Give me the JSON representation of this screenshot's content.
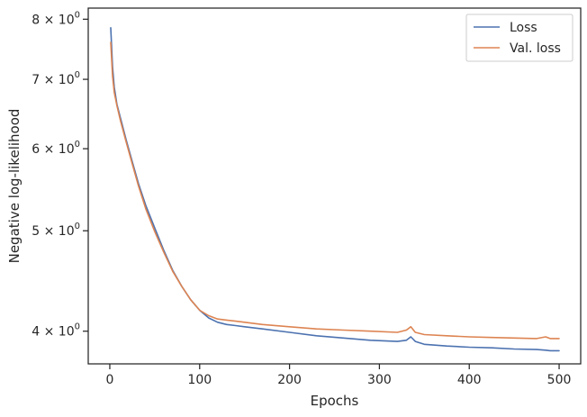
{
  "chart_data": {
    "type": "line",
    "title": "",
    "xlabel": "Epochs",
    "ylabel": "Negative log-likelihood",
    "xlim": [
      -24,
      524
    ],
    "ylim": [
      3.72,
      8.2
    ],
    "yscale": "log",
    "x_ticks": [
      {
        "value": 0,
        "label": "0"
      },
      {
        "value": 100,
        "label": "100"
      },
      {
        "value": 200,
        "label": "200"
      },
      {
        "value": 300,
        "label": "300"
      },
      {
        "value": 400,
        "label": "400"
      },
      {
        "value": 500,
        "label": "500"
      }
    ],
    "y_ticks": [
      {
        "value": 4,
        "base": "4",
        "mult": "×",
        "pow": "10",
        "exp": "0"
      },
      {
        "value": 5,
        "base": "5",
        "mult": "×",
        "pow": "10",
        "exp": "0"
      },
      {
        "value": 6,
        "base": "6",
        "mult": "×",
        "pow": "10",
        "exp": "0"
      },
      {
        "value": 7,
        "base": "7",
        "mult": "×",
        "pow": "10",
        "exp": "0"
      },
      {
        "value": 8,
        "base": "8",
        "mult": "×",
        "pow": "10",
        "exp": "0"
      }
    ],
    "grid": false,
    "legend_position": "top-right",
    "series": [
      {
        "name": "Loss",
        "color": "#4c72b0",
        "points": [
          [
            1,
            7.85
          ],
          [
            3,
            7.2
          ],
          [
            5,
            6.88
          ],
          [
            8,
            6.62
          ],
          [
            12,
            6.42
          ],
          [
            18,
            6.13
          ],
          [
            25,
            5.83
          ],
          [
            32,
            5.55
          ],
          [
            40,
            5.29
          ],
          [
            50,
            5.03
          ],
          [
            60,
            4.79
          ],
          [
            70,
            4.58
          ],
          [
            80,
            4.42
          ],
          [
            90,
            4.29
          ],
          [
            100,
            4.19
          ],
          [
            110,
            4.12
          ],
          [
            120,
            4.08
          ],
          [
            130,
            4.06
          ],
          [
            140,
            4.05
          ],
          [
            150,
            4.04
          ],
          [
            170,
            4.02
          ],
          [
            200,
            3.99
          ],
          [
            230,
            3.96
          ],
          [
            260,
            3.94
          ],
          [
            290,
            3.92
          ],
          [
            320,
            3.91
          ],
          [
            330,
            3.92
          ],
          [
            335,
            3.95
          ],
          [
            340,
            3.91
          ],
          [
            350,
            3.885
          ],
          [
            375,
            3.87
          ],
          [
            400,
            3.86
          ],
          [
            425,
            3.855
          ],
          [
            450,
            3.845
          ],
          [
            475,
            3.84
          ],
          [
            485,
            3.835
          ],
          [
            490,
            3.83
          ],
          [
            500,
            3.83
          ]
        ]
      },
      {
        "name": "Val. loss",
        "color": "#dd8452",
        "points": [
          [
            1,
            7.6
          ],
          [
            3,
            7.05
          ],
          [
            5,
            6.8
          ],
          [
            8,
            6.6
          ],
          [
            12,
            6.38
          ],
          [
            18,
            6.1
          ],
          [
            25,
            5.8
          ],
          [
            32,
            5.52
          ],
          [
            40,
            5.25
          ],
          [
            50,
            4.99
          ],
          [
            60,
            4.77
          ],
          [
            70,
            4.57
          ],
          [
            80,
            4.42
          ],
          [
            90,
            4.29
          ],
          [
            100,
            4.19
          ],
          [
            110,
            4.14
          ],
          [
            120,
            4.11
          ],
          [
            130,
            4.1
          ],
          [
            140,
            4.09
          ],
          [
            150,
            4.08
          ],
          [
            170,
            4.06
          ],
          [
            200,
            4.04
          ],
          [
            230,
            4.02
          ],
          [
            260,
            4.01
          ],
          [
            290,
            4.0
          ],
          [
            320,
            3.99
          ],
          [
            330,
            4.01
          ],
          [
            335,
            4.04
          ],
          [
            340,
            3.99
          ],
          [
            350,
            3.97
          ],
          [
            375,
            3.96
          ],
          [
            400,
            3.95
          ],
          [
            425,
            3.945
          ],
          [
            450,
            3.94
          ],
          [
            475,
            3.935
          ],
          [
            485,
            3.95
          ],
          [
            490,
            3.935
          ],
          [
            500,
            3.935
          ]
        ]
      }
    ]
  }
}
